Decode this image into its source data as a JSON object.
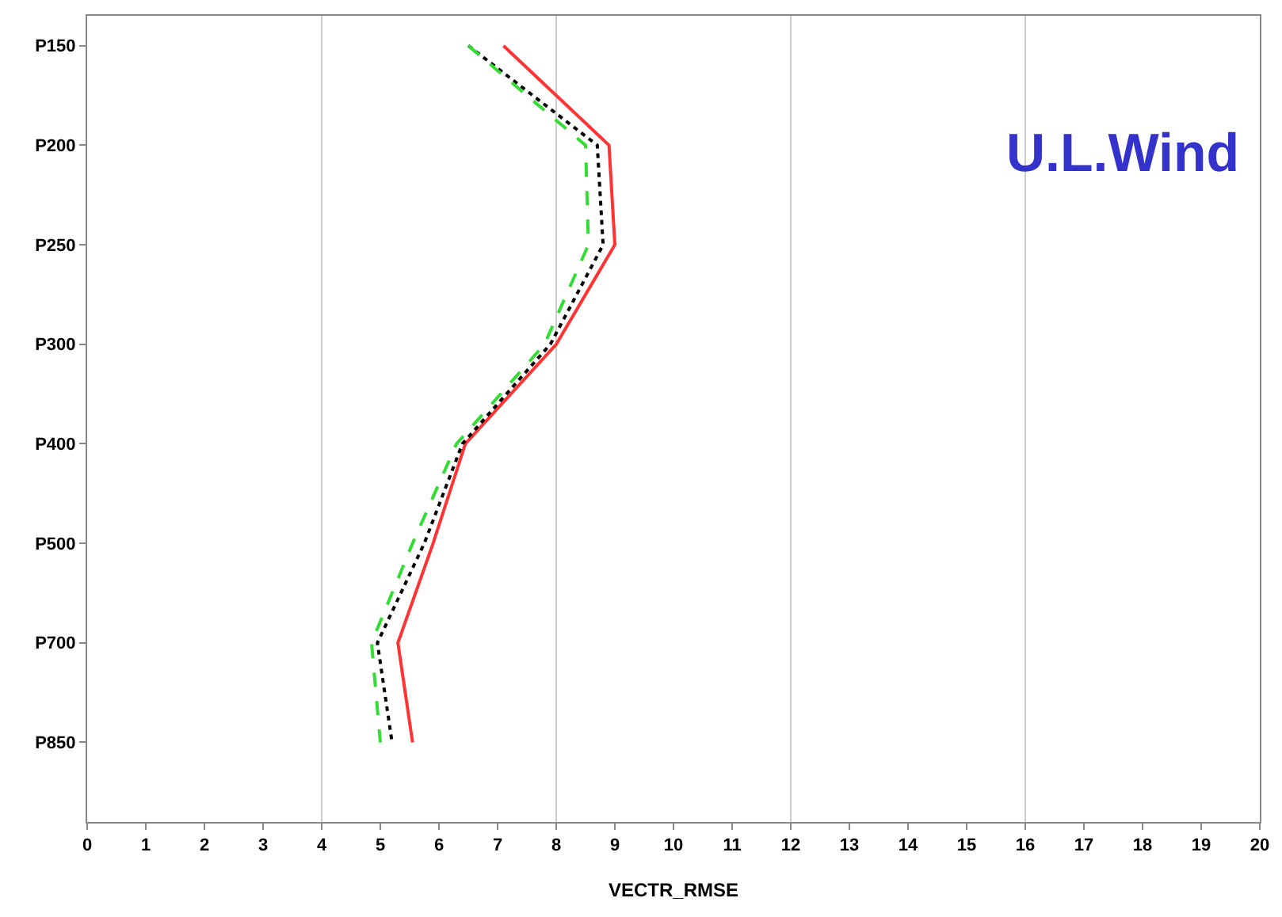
{
  "chart_data": {
    "type": "line",
    "orientation": "horizontal",
    "xlabel": "VECTR_RMSE",
    "categories": [
      "P150",
      "P200",
      "P250",
      "P300",
      "P400",
      "P500",
      "P700",
      "P850"
    ],
    "series": [
      {
        "color": "#ff3333",
        "line_style": "solid",
        "values": [
          7.1,
          8.9,
          9.0,
          8.0,
          6.45,
          5.9,
          5.3,
          5.55
        ]
      },
      {
        "color": "#000000",
        "line_style": "dotted",
        "values": [
          6.5,
          8.7,
          8.8,
          7.9,
          6.4,
          5.75,
          4.95,
          5.2
        ]
      },
      {
        "color": "#33dd33",
        "line_style": "dashed",
        "values": [
          6.5,
          8.5,
          8.55,
          7.8,
          6.3,
          5.55,
          4.85,
          5.0
        ]
      }
    ],
    "xlim": [
      0,
      20
    ],
    "xticks": [
      0,
      1,
      2,
      3,
      4,
      5,
      6,
      7,
      8,
      9,
      10,
      11,
      12,
      13,
      14,
      15,
      16,
      17,
      18,
      19,
      20
    ],
    "ref_lines": [
      {
        "axis": "x",
        "value": 4,
        "color": "#cccccc"
      },
      {
        "axis": "x",
        "value": 8,
        "color": "#cccccc"
      },
      {
        "axis": "x",
        "value": 12,
        "color": "#cccccc"
      },
      {
        "axis": "x",
        "value": 16,
        "color": "#cccccc"
      }
    ],
    "annotations": [
      "U.L.Wind"
    ]
  }
}
